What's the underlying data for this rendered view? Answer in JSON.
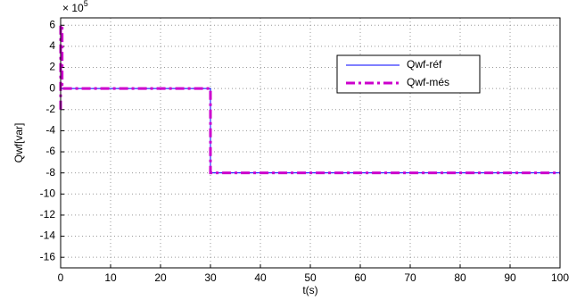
{
  "chart_data": {
    "type": "line",
    "xlabel": "t(s)",
    "ylabel": "Qwf[var]",
    "y_scale_base": "× 10",
    "y_scale_exponent": 5,
    "xlim": [
      0,
      100
    ],
    "xticks": [
      0,
      10,
      20,
      30,
      40,
      50,
      60,
      70,
      80,
      90,
      100
    ],
    "ylim": [
      -17,
      6.7
    ],
    "yticks": [
      -16,
      -14,
      -12,
      -10,
      -8,
      -6,
      -4,
      -2,
      0,
      2,
      4,
      6
    ],
    "grid": true,
    "legend": "upper right",
    "series": [
      {
        "name": "Qwf-réf",
        "color": "#0000ff",
        "style": "solid",
        "x": [
          0,
          30,
          30,
          100
        ],
        "values": [
          0,
          0,
          -8,
          -8
        ]
      },
      {
        "name": "Qwf-més",
        "color": "#cc00cc",
        "style": "dashdot",
        "x": [
          0,
          0,
          0.3,
          0.3,
          30,
          30,
          100
        ],
        "values": [
          -2,
          6,
          6,
          0,
          0,
          -8,
          -8
        ]
      }
    ]
  }
}
